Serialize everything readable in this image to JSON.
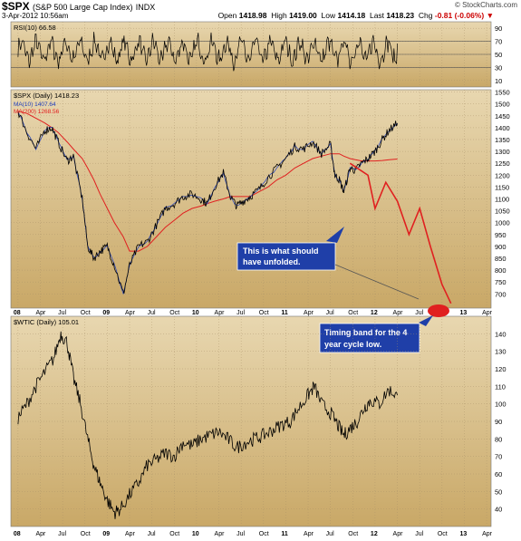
{
  "header": {
    "symbol": "$SPX",
    "name": "(S&P 500 Large Cap Index)",
    "exchange": "INDX",
    "datetime": "3-Apr-2012 10:56am",
    "watermark": "© StockCharts.com",
    "open_label": "Open",
    "open": "1418.98",
    "high_label": "High",
    "high": "1419.00",
    "low_label": "Low",
    "low": "1414.18",
    "last_label": "Last",
    "last": "1418.23",
    "chg_label": "Chg",
    "chg": "-0.81 (-0.06%)"
  },
  "colors": {
    "panel_bg_top": "#e8d7b0",
    "panel_bg_bottom": "#c9a867",
    "price_line": "#000000",
    "ma10": "#1f3fbf",
    "ma200": "#e02020",
    "projection": "#e02020",
    "callout_bg": "#1f3fa8",
    "callout_text": "#ffffff",
    "timing_band": "#e02020"
  },
  "chart_data": [
    {
      "type": "line",
      "panel": "rsi",
      "label": "RSI(10) 66.58",
      "indicator": "RSI(10)",
      "last_value": 66.58,
      "ylim": [
        0,
        100
      ],
      "yticks": [
        10,
        30,
        50,
        70,
        90
      ],
      "reference_lines": [
        30,
        50,
        70
      ],
      "note": "oscillating series between roughly 25 and 85"
    },
    {
      "type": "line",
      "panel": "spx",
      "label": "$SPX (Daily) 1418.23",
      "ylim": [
        640,
        1560
      ],
      "yticks": [
        700,
        750,
        800,
        850,
        900,
        950,
        1000,
        1050,
        1100,
        1150,
        1200,
        1250,
        1300,
        1350,
        1400,
        1450,
        1500,
        1550
      ],
      "xlabels": [
        "08",
        "Apr",
        "Jul",
        "Oct",
        "09",
        "Apr",
        "Jul",
        "Oct",
        "10",
        "Apr",
        "Jul",
        "Oct",
        "11",
        "Apr",
        "Jul",
        "Oct",
        "12",
        "Apr",
        "Jul",
        "Oct",
        "13",
        "Apr"
      ],
      "x": [
        2008.0,
        2008.1,
        2008.2,
        2008.3,
        2008.38,
        2008.45,
        2008.55,
        2008.62,
        2008.72,
        2008.78,
        2008.85,
        2008.92,
        2009.0,
        2009.08,
        2009.18,
        2009.25,
        2009.35,
        2009.45,
        2009.55,
        2009.65,
        2009.75,
        2009.85,
        2009.95,
        2010.05,
        2010.12,
        2010.2,
        2010.3,
        2010.38,
        2010.45,
        2010.52,
        2010.6,
        2010.7,
        2010.8,
        2010.9,
        2011.0,
        2011.1,
        2011.2,
        2011.3,
        2011.4,
        2011.5,
        2011.55,
        2011.6,
        2011.65,
        2011.72,
        2011.78,
        2011.85,
        2011.92,
        2012.0,
        2012.08,
        2012.16,
        2012.25
      ],
      "series": [
        {
          "name": "$SPX (Daily) 1418.23",
          "values": [
            1470,
            1380,
            1310,
            1390,
            1400,
            1340,
            1260,
            1280,
            1100,
            900,
            850,
            880,
            900,
            820,
            700,
            820,
            900,
            920,
            990,
            1060,
            1080,
            1110,
            1120,
            1100,
            1080,
            1150,
            1210,
            1110,
            1070,
            1090,
            1110,
            1140,
            1190,
            1230,
            1270,
            1320,
            1310,
            1340,
            1290,
            1330,
            1200,
            1180,
            1130,
            1230,
            1220,
            1250,
            1270,
            1300,
            1350,
            1390,
            1418
          ]
        },
        {
          "name": "MA(10) 1407.64",
          "last_value": 1407.64
        },
        {
          "name": "MA(200) 1268.56",
          "last_value": 1268.56,
          "values": [
            1470,
            1460,
            1440,
            1420,
            1400,
            1380,
            1340,
            1310,
            1270,
            1230,
            1180,
            1120,
            1060,
            1000,
            940,
            880,
            880,
            900,
            940,
            980,
            1010,
            1040,
            1060,
            1070,
            1080,
            1090,
            1100,
            1110,
            1110,
            1110,
            1110,
            1130,
            1150,
            1180,
            1200,
            1230,
            1250,
            1270,
            1280,
            1290,
            1290,
            1290,
            1280,
            1270,
            1265,
            1260,
            1260,
            1260,
            1262,
            1265,
            1268
          ]
        }
      ],
      "projection": {
        "x": [
          2011.72,
          2011.92,
          2012.0,
          2012.12,
          2012.25,
          2012.38,
          2012.5,
          2012.62,
          2012.75,
          2012.85
        ],
        "values": [
          1250,
          1200,
          1060,
          1170,
          1090,
          950,
          1060,
          900,
          740,
          660
        ]
      },
      "annotations": [
        "This is what should have unfolded.",
        "Timing band for the 4 year cycle low."
      ]
    },
    {
      "type": "line",
      "panel": "wtic",
      "label": "$WTIC (Daily) 105.01",
      "ylim": [
        30,
        150
      ],
      "yticks": [
        40,
        50,
        60,
        70,
        80,
        90,
        100,
        110,
        120,
        130,
        140
      ],
      "xlabels": [
        "08",
        "Apr",
        "Jul",
        "Oct",
        "09",
        "Apr",
        "Jul",
        "Oct",
        "10",
        "Apr",
        "Jul",
        "Oct",
        "11",
        "Apr",
        "Jul",
        "Oct",
        "12",
        "Apr",
        "Jul",
        "Oct",
        "13",
        "Apr"
      ],
      "x": [
        2008.0,
        2008.1,
        2008.2,
        2008.3,
        2008.4,
        2008.48,
        2008.55,
        2008.62,
        2008.7,
        2008.78,
        2008.85,
        2008.92,
        2009.0,
        2009.08,
        2009.15,
        2009.25,
        2009.35,
        2009.45,
        2009.55,
        2009.65,
        2009.75,
        2009.85,
        2009.95,
        2010.05,
        2010.15,
        2010.25,
        2010.35,
        2010.45,
        2010.55,
        2010.65,
        2010.75,
        2010.85,
        2010.95,
        2011.05,
        2011.15,
        2011.25,
        2011.32,
        2011.4,
        2011.5,
        2011.58,
        2011.65,
        2011.72,
        2011.8,
        2011.88,
        2011.95,
        2012.05,
        2012.15,
        2012.25
      ],
      "series": [
        {
          "name": "$WTIC (Daily) 105.01",
          "values": [
            92,
            100,
            110,
            118,
            126,
            140,
            135,
            115,
            100,
            80,
            65,
            55,
            45,
            38,
            40,
            48,
            55,
            65,
            68,
            72,
            70,
            78,
            76,
            80,
            82,
            84,
            80,
            75,
            78,
            80,
            82,
            85,
            88,
            90,
            98,
            105,
            110,
            100,
            95,
            88,
            82,
            86,
            90,
            98,
            102,
            100,
            108,
            105
          ]
        }
      ]
    }
  ]
}
